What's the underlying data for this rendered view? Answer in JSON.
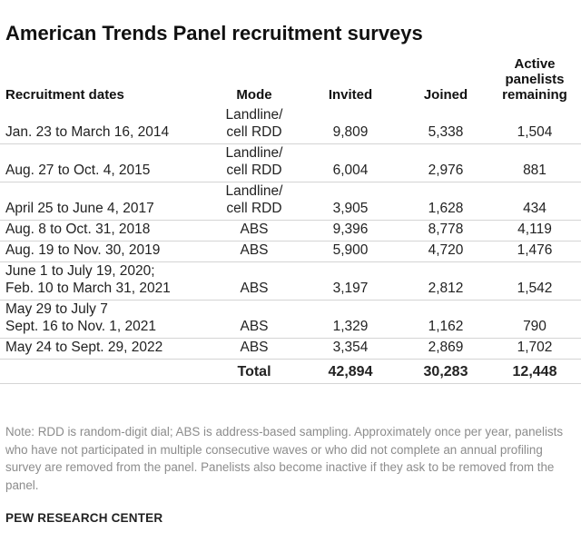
{
  "title": "American Trends Panel recruitment surveys",
  "headers": {
    "dates": "Recruitment dates",
    "mode": "Mode",
    "invited": "Invited",
    "joined": "Joined",
    "active": "Active\npanelists\nremaining"
  },
  "rows": [
    {
      "dates": "Jan. 23 to March 16, 2014",
      "mode": "Landline/\ncell RDD",
      "invited": "9,809",
      "joined": "5,338",
      "active": "1,504"
    },
    {
      "dates": "Aug. 27 to Oct. 4, 2015",
      "mode": "Landline/\ncell RDD",
      "invited": "6,004",
      "joined": "2,976",
      "active": "881"
    },
    {
      "dates": "April 25 to June 4, 2017",
      "mode": "Landline/\ncell RDD",
      "invited": "3,905",
      "joined": "1,628",
      "active": "434"
    },
    {
      "dates": "Aug. 8 to Oct. 31, 2018",
      "mode": "ABS",
      "invited": "9,396",
      "joined": "8,778",
      "active": "4,119"
    },
    {
      "dates": "Aug. 19 to Nov. 30, 2019",
      "mode": "ABS",
      "invited": "5,900",
      "joined": "4,720",
      "active": "1,476"
    },
    {
      "dates": "June 1 to July 19, 2020;\nFeb. 10 to March 31, 2021",
      "mode": "ABS",
      "invited": "3,197",
      "joined": "2,812",
      "active": "1,542"
    },
    {
      "dates": "May 29 to July 7\nSept. 16 to Nov. 1, 2021",
      "mode": "ABS",
      "invited": "1,329",
      "joined": "1,162",
      "active": "790"
    },
    {
      "dates": "May 24 to Sept. 29, 2022",
      "mode": "ABS",
      "invited": "3,354",
      "joined": "2,869",
      "active": "1,702"
    }
  ],
  "total": {
    "label": "Total",
    "invited": "42,894",
    "joined": "30,283",
    "active": "12,448"
  },
  "note": "Note: RDD is random-digit dial; ABS is address-based sampling. Approximately once per year, panelists who have not participated in multiple consecutive waves or who did not complete an annual profiling survey are removed from the panel. Panelists also become inactive if they ask to be removed from the panel.",
  "source": "PEW RESEARCH CENTER"
}
